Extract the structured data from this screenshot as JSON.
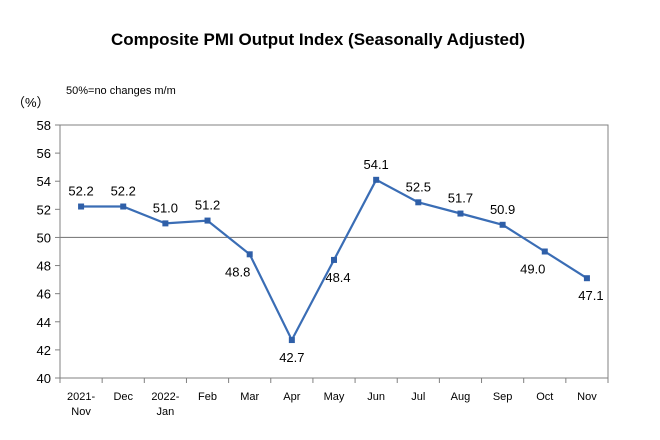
{
  "chart_data": {
    "type": "line",
    "title": "Composite PMI Output Index (Seasonally Adjusted)",
    "note": "50%=no changes m/m",
    "unit_label": "（%）",
    "categories": [
      [
        "2021-",
        "Nov"
      ],
      [
        "Dec"
      ],
      [
        "2022-",
        "Jan"
      ],
      [
        "Feb"
      ],
      [
        "Mar"
      ],
      [
        "Apr"
      ],
      [
        "May"
      ],
      [
        "Jun"
      ],
      [
        "Jul"
      ],
      [
        "Aug"
      ],
      [
        "Sep"
      ],
      [
        "Oct"
      ],
      [
        "Nov"
      ]
    ],
    "values": [
      52.2,
      52.2,
      51.0,
      51.2,
      48.8,
      42.7,
      48.4,
      54.1,
      52.5,
      51.7,
      50.9,
      49.0,
      47.1
    ],
    "value_labels": [
      "52.2",
      "52.2",
      "51.0",
      "51.2",
      "48.8",
      "42.7",
      "48.4",
      "54.1",
      "52.5",
      "51.7",
      "50.9",
      "49.0",
      "47.1"
    ],
    "ylim": [
      40,
      58
    ],
    "yticks": [
      40,
      42,
      44,
      46,
      48,
      50,
      52,
      54,
      56,
      58
    ],
    "reference_line": 50,
    "grid": false,
    "colors": {
      "line": "#3a6db5",
      "marker": "#2f5fa8",
      "reference": "#808080",
      "axis": "#808080"
    }
  }
}
